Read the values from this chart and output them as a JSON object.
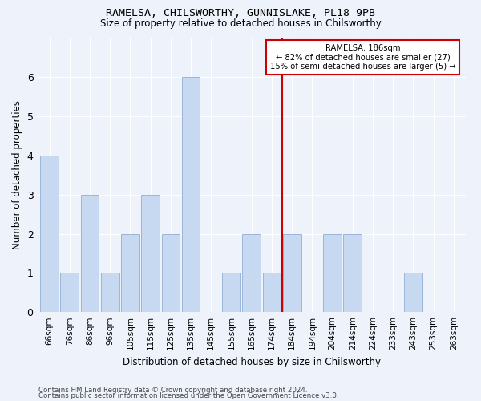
{
  "title": "RAMELSA, CHILSWORTHY, GUNNISLAKE, PL18 9PB",
  "subtitle": "Size of property relative to detached houses in Chilsworthy",
  "xlabel": "Distribution of detached houses by size in Chilsworthy",
  "ylabel": "Number of detached properties",
  "categories": [
    "66sqm",
    "76sqm",
    "86sqm",
    "96sqm",
    "105sqm",
    "115sqm",
    "125sqm",
    "135sqm",
    "145sqm",
    "155sqm",
    "165sqm",
    "174sqm",
    "184sqm",
    "194sqm",
    "204sqm",
    "214sqm",
    "224sqm",
    "233sqm",
    "243sqm",
    "253sqm",
    "263sqm"
  ],
  "values": [
    4,
    1,
    3,
    1,
    2,
    3,
    2,
    6,
    0,
    1,
    2,
    1,
    2,
    0,
    2,
    2,
    0,
    0,
    1,
    0,
    0
  ],
  "bar_color": "#c6d9f1",
  "bar_edge_color": "#9ab5d9",
  "vline_x_index": 12,
  "vline_color": "#cc0000",
  "annotation_title": "RAMELSA: 186sqm",
  "annotation_line1": "← 82% of detached houses are smaller (27)",
  "annotation_line2": "15% of semi-detached houses are larger (5) →",
  "annotation_box_color": "#cc0000",
  "ylim": [
    0,
    7
  ],
  "yticks": [
    0,
    1,
    2,
    3,
    4,
    5,
    6,
    7
  ],
  "bg_color": "#eef2fb",
  "grid_color": "#ffffff",
  "footer1": "Contains HM Land Registry data © Crown copyright and database right 2024.",
  "footer2": "Contains public sector information licensed under the Open Government Licence v3.0."
}
